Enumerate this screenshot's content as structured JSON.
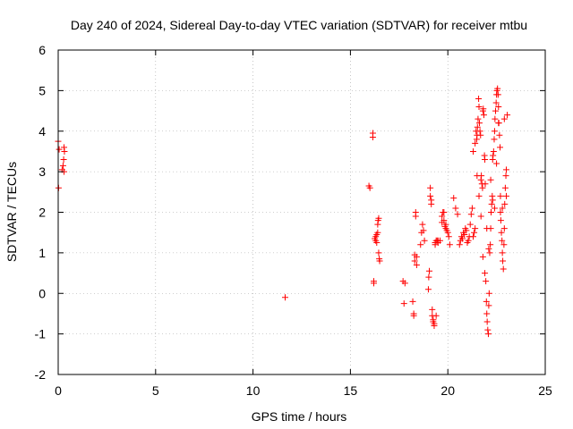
{
  "chart_data": {
    "type": "scatter",
    "title": "Day 240 of 2024, Sidereal Day-to-day VTEC variation (SDTVAR) for receiver mtbu",
    "xlabel": "GPS time / hours",
    "ylabel": "SDTVAR / TECUs",
    "xlim": [
      0,
      25
    ],
    "ylim": [
      -2,
      6
    ],
    "xticks": [
      0,
      5,
      10,
      15,
      20,
      25
    ],
    "yticks": [
      -2,
      -1,
      0,
      1,
      2,
      3,
      4,
      5,
      6
    ],
    "grid": true,
    "marker": "+",
    "marker_color": "#ff0000",
    "series": [
      {
        "name": "SDTVAR",
        "x": [
          0.0,
          0.02,
          0.05,
          0.2,
          0.25,
          0.28,
          0.3,
          0.32,
          0.3,
          11.65,
          15.95,
          16.0,
          16.15,
          16.15,
          16.2,
          16.2,
          16.25,
          16.3,
          16.3,
          16.35,
          16.35,
          16.4,
          16.4,
          16.42,
          16.45,
          16.45,
          16.48,
          16.5,
          17.7,
          17.75,
          17.8,
          18.2,
          18.25,
          18.25,
          18.3,
          18.3,
          18.35,
          18.35,
          18.4,
          18.4,
          18.6,
          18.65,
          18.7,
          18.75,
          18.8,
          19.0,
          19.02,
          19.05,
          19.1,
          19.1,
          19.15,
          19.15,
          19.2,
          19.2,
          19.25,
          19.25,
          19.3,
          19.3,
          19.35,
          19.35,
          19.4,
          19.4,
          19.45,
          19.5,
          19.5,
          19.6,
          19.7,
          19.7,
          19.75,
          19.8,
          19.8,
          19.85,
          19.9,
          19.9,
          19.95,
          20.0,
          20.05,
          20.1,
          20.3,
          20.4,
          20.5,
          20.6,
          20.65,
          20.7,
          20.75,
          20.8,
          20.85,
          20.9,
          20.95,
          21.0,
          21.05,
          21.1,
          21.15,
          21.2,
          21.25,
          21.3,
          21.35,
          21.4,
          21.45,
          21.48,
          21.5,
          21.52,
          21.55,
          21.58,
          21.6,
          21.62,
          21.65,
          21.68,
          21.7,
          21.72,
          21.75,
          21.78,
          21.8,
          21.82,
          21.85,
          21.88,
          21.9,
          21.92,
          21.95,
          21.98,
          22.0,
          22.02,
          22.05,
          22.08,
          22.1,
          22.12,
          22.15,
          22.18,
          22.2,
          22.22,
          22.25,
          22.28,
          22.3,
          22.32,
          22.35,
          22.38,
          22.4,
          22.42,
          22.45,
          22.48,
          22.5,
          22.52,
          22.55,
          22.58,
          22.6,
          22.62,
          22.65,
          22.68,
          22.7,
          22.72,
          22.75,
          22.78,
          22.8,
          22.82,
          22.85,
          22.88,
          22.9,
          22.92,
          22.95,
          22.98,
          23.0,
          21.3,
          21.4,
          21.5,
          21.6,
          21.7,
          21.8,
          21.9,
          22.0,
          22.1,
          22.2,
          22.3,
          22.4,
          22.5,
          22.6,
          22.7,
          22.8,
          22.9,
          23.0,
          23.05
        ],
        "y": [
          3.75,
          2.6,
          3.55,
          3.05,
          3.15,
          3.3,
          3.0,
          3.5,
          3.6,
          -0.1,
          2.65,
          2.6,
          3.85,
          3.95,
          0.25,
          0.3,
          1.35,
          1.3,
          1.4,
          1.25,
          1.45,
          1.5,
          1.7,
          1.8,
          1.85,
          1.0,
          0.85,
          0.8,
          0.3,
          -0.25,
          0.25,
          -0.2,
          -0.5,
          -0.55,
          0.8,
          0.95,
          1.9,
          2.0,
          0.7,
          0.9,
          1.2,
          1.5,
          1.7,
          1.55,
          1.3,
          0.1,
          0.4,
          0.55,
          2.6,
          2.4,
          2.3,
          2.2,
          -0.55,
          -0.4,
          -0.65,
          -0.7,
          -0.75,
          -0.8,
          1.2,
          1.25,
          1.3,
          -0.55,
          1.3,
          1.25,
          1.3,
          1.3,
          1.75,
          1.9,
          2.0,
          2.0,
          1.8,
          1.65,
          1.7,
          1.6,
          1.55,
          1.5,
          1.4,
          1.2,
          2.35,
          2.1,
          1.95,
          1.2,
          1.3,
          1.4,
          1.35,
          1.5,
          1.45,
          1.6,
          1.55,
          1.25,
          1.3,
          1.4,
          1.7,
          1.95,
          2.1,
          1.4,
          1.5,
          1.6,
          4.0,
          3.8,
          3.9,
          4.1,
          4.3,
          4.8,
          4.6,
          4.2,
          4.0,
          3.9,
          2.8,
          2.9,
          2.7,
          2.6,
          4.5,
          4.55,
          4.4,
          3.4,
          3.3,
          2.7,
          0.3,
          -0.2,
          -0.5,
          -0.7,
          -0.9,
          -1.0,
          -0.3,
          0.0,
          1.0,
          1.2,
          1.6,
          2.0,
          2.2,
          2.4,
          3.3,
          3.4,
          3.5,
          3.8,
          4.0,
          4.3,
          4.5,
          4.7,
          4.9,
          5.0,
          5.05,
          4.9,
          4.6,
          4.2,
          3.9,
          3.6,
          2.0,
          1.8,
          1.5,
          1.3,
          1.0,
          0.8,
          0.6,
          1.2,
          1.6,
          2.2,
          2.6,
          2.9,
          3.05,
          3.5,
          3.7,
          2.9,
          2.4,
          1.9,
          0.9,
          0.5,
          1.6,
          1.1,
          2.8,
          2.3,
          2.1,
          3.2,
          4.2,
          2.4,
          2.1,
          4.3,
          2.4,
          4.4
        ]
      }
    ]
  }
}
